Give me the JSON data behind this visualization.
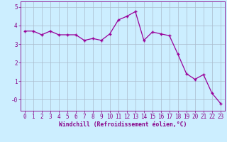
{
  "x": [
    0,
    1,
    2,
    3,
    4,
    5,
    6,
    7,
    8,
    9,
    10,
    11,
    12,
    13,
    14,
    15,
    16,
    17,
    18,
    19,
    20,
    21,
    22,
    23
  ],
  "y": [
    3.7,
    3.7,
    3.5,
    3.7,
    3.5,
    3.5,
    3.5,
    3.2,
    3.3,
    3.2,
    3.55,
    4.3,
    4.5,
    4.75,
    3.2,
    3.65,
    3.55,
    3.45,
    2.45,
    1.4,
    1.1,
    1.35,
    0.35,
    -0.2
  ],
  "line_color": "#990099",
  "marker": "+",
  "marker_size": 3.5,
  "marker_linewidth": 1.0,
  "bg_color": "#cceeff",
  "grid_color": "#aabbcc",
  "xlabel": "Windchill (Refroidissement éolien,°C)",
  "ylabel": "",
  "ylim": [
    -0.6,
    5.3
  ],
  "xlim": [
    -0.5,
    23.5
  ],
  "yticks": [
    0,
    1,
    2,
    3,
    4,
    5
  ],
  "ytick_labels": [
    "-0",
    "1",
    "2",
    "3",
    "4",
    "5"
  ],
  "xticks": [
    0,
    1,
    2,
    3,
    4,
    5,
    6,
    7,
    8,
    9,
    10,
    11,
    12,
    13,
    14,
    15,
    16,
    17,
    18,
    19,
    20,
    21,
    22,
    23
  ],
  "title_color": "#880088",
  "axis_color": "#880088",
  "label_fontsize": 5.8,
  "tick_fontsize": 5.5,
  "linewidth": 0.9
}
